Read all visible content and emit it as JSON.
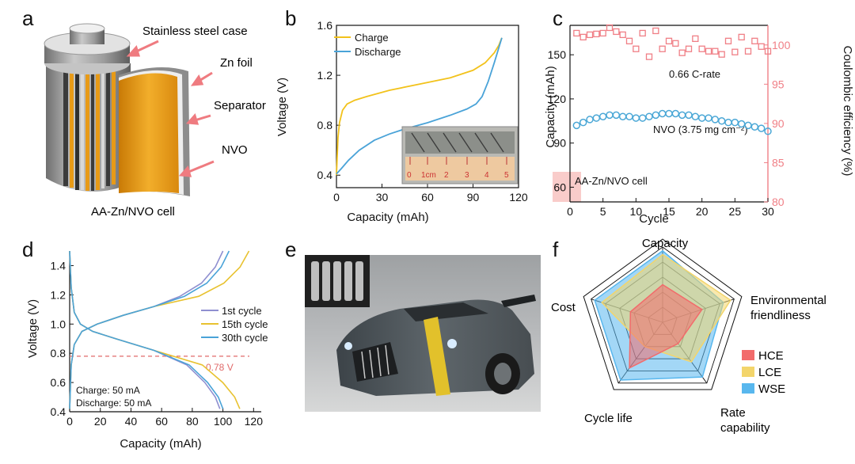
{
  "panel_labels": {
    "a": "a",
    "b": "b",
    "c": "c",
    "d": "d",
    "e": "e",
    "f": "f"
  },
  "colors": {
    "charge": "#f2c21b",
    "discharge": "#4aa3d8",
    "cap_c": "#4aa7d6",
    "ce_c": "#f07f86",
    "cyc1": "#8f8fd0",
    "cyc15": "#e8c230",
    "cyc30": "#4aa3d8",
    "ref_line": "#e06a6a",
    "hce": "#f26b6b",
    "lce": "#f3d56b",
    "wse": "#58b7ee",
    "copper": "#e79a17",
    "steel": "#9a9a9a"
  },
  "panel_a": {
    "labels": [
      "Stainless steel case",
      "Zn foil",
      "Separator",
      "NVO"
    ],
    "caption": "AA-Zn/NVO cell"
  },
  "panel_e": {
    "description": "AA cells powering a toy car"
  },
  "chart_data": [
    {
      "id": "b",
      "type": "line",
      "xlabel": "Capacity (mAh)",
      "ylabel": "Voltage (V)",
      "xlim": [
        0,
        120
      ],
      "ylim": [
        0.3,
        1.6
      ],
      "xticks": [
        0,
        30,
        60,
        90,
        120
      ],
      "yticks": [
        0.4,
        0.8,
        1.2,
        1.6
      ],
      "yticklabels": [
        "0.4",
        "0.8",
        "1.2",
        "1.6"
      ],
      "series": [
        {
          "name": "Charge",
          "x": [
            0,
            1,
            2,
            4,
            7,
            12,
            20,
            35,
            55,
            75,
            90,
            98,
            104,
            107,
            109
          ],
          "y": [
            0.4,
            0.7,
            0.82,
            0.92,
            0.97,
            1.0,
            1.03,
            1.08,
            1.13,
            1.18,
            1.24,
            1.3,
            1.38,
            1.44,
            1.5
          ]
        },
        {
          "name": "Discharge",
          "x": [
            109,
            107,
            104,
            100,
            96,
            92,
            86,
            75,
            60,
            45,
            35,
            25,
            15,
            8,
            3,
            0
          ],
          "y": [
            1.5,
            1.42,
            1.3,
            1.15,
            1.03,
            0.97,
            0.93,
            0.88,
            0.82,
            0.77,
            0.73,
            0.68,
            0.6,
            0.52,
            0.45,
            0.41
          ]
        }
      ],
      "inset": {
        "ruler_labels": [
          "0",
          "1cm",
          "2",
          "3",
          "4",
          "5"
        ]
      }
    },
    {
      "id": "c",
      "type": "scatter",
      "xlabel": "Cycle",
      "ylabel": "Capacity (mAh)",
      "y2label": "Coulombic efficiency (%)",
      "xlim": [
        0,
        30
      ],
      "ylim": [
        50,
        170
      ],
      "y2lim": [
        80,
        102.5
      ],
      "xticks": [
        0,
        5,
        10,
        15,
        20,
        25,
        30
      ],
      "yticks": [
        60,
        90,
        120,
        150
      ],
      "y2ticks": [
        80,
        85,
        90,
        95,
        100
      ],
      "cycles": [
        1,
        2,
        3,
        4,
        5,
        6,
        7,
        8,
        9,
        10,
        11,
        12,
        13,
        14,
        15,
        16,
        17,
        18,
        19,
        20,
        21,
        22,
        23,
        24,
        25,
        26,
        27,
        28,
        29,
        30
      ],
      "capacity": [
        102,
        104,
        106,
        107,
        108,
        109,
        109,
        108,
        108,
        107,
        107,
        108,
        109,
        110,
        110,
        110,
        109,
        109,
        108,
        107,
        107,
        106,
        105,
        104,
        104,
        103,
        102,
        101,
        100,
        98
      ],
      "efficiency": [
        101.5,
        101,
        101.3,
        101.4,
        101.5,
        102.2,
        101.7,
        101.3,
        100.5,
        99.5,
        101.5,
        98.5,
        101.8,
        99.5,
        100.5,
        100.2,
        99,
        99.5,
        100.8,
        99.5,
        99.2,
        99.2,
        98.8,
        100.5,
        99.1,
        101,
        99.2,
        100.5,
        99.8,
        99.2
      ],
      "annotations": [
        "0.66 C-rate",
        "NVO (3.75 mg cm⁻²)",
        "AA-Zn/NVO cell"
      ]
    },
    {
      "id": "d",
      "type": "line",
      "xlabel": "Capacity (mAh)",
      "ylabel": "Voltage (V)",
      "xlim": [
        0,
        125
      ],
      "ylim": [
        0.4,
        1.5
      ],
      "xticks": [
        0,
        20,
        40,
        60,
        80,
        100,
        120
      ],
      "yticks": [
        0.4,
        0.6,
        0.8,
        1.0,
        1.2,
        1.4
      ],
      "yticklabels": [
        "0.4",
        "0.6",
        "0.8",
        "1.0",
        "1.2",
        "1.4"
      ],
      "reference": {
        "y": 0.78,
        "label": "0.78 V"
      },
      "notes": [
        "Charge: 50 mA",
        "Discharge: 50 mA"
      ],
      "series": [
        {
          "name": "1st cycle",
          "charge_end": 100,
          "discharge_end": 98
        },
        {
          "name": "15th cycle",
          "charge_end": 117,
          "discharge_end": 111
        },
        {
          "name": "30th cycle",
          "charge_end": 104,
          "discharge_end": 100
        }
      ]
    },
    {
      "id": "f",
      "type": "radar",
      "axes": [
        "Capacity",
        "Environmental friendliness",
        "Rate capability",
        "Cycle life",
        "Cost"
      ],
      "axis_labels": [
        [
          "Capacity"
        ],
        [
          "Environmental",
          "friendliness"
        ],
        [
          "Rate",
          "capability"
        ],
        [
          "Cycle life"
        ],
        [
          "Cost"
        ]
      ],
      "levels": 5,
      "series": [
        {
          "name": "HCE",
          "values": [
            0.5,
            0.55,
            0.35,
            0.75,
            0.45
          ]
        },
        {
          "name": "LCE",
          "values": [
            0.9,
            0.95,
            0.65,
            0.4,
            0.85
          ]
        },
        {
          "name": "WSE",
          "values": [
            0.95,
            0.85,
            0.9,
            0.95,
            0.95
          ]
        }
      ]
    }
  ]
}
